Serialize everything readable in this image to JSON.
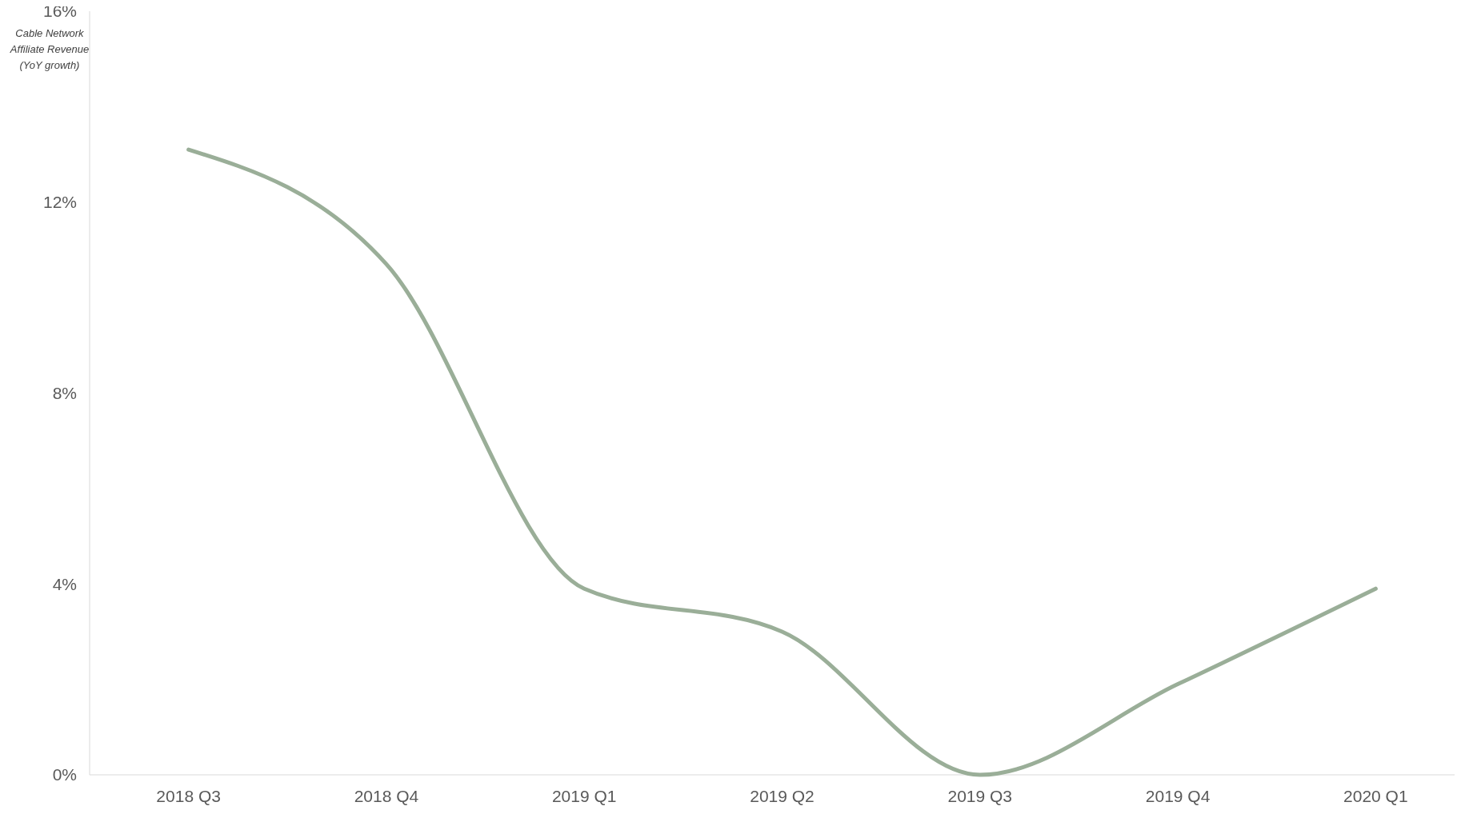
{
  "chart_data": {
    "type": "line",
    "ylabel": "Cable Network Affiliate Revenue (YoY growth)",
    "categories": [
      "2018 Q3",
      "2018 Q4",
      "2019 Q1",
      "2019 Q2",
      "2019 Q3",
      "2019 Q4",
      "2020 Q1"
    ],
    "series": [
      {
        "color": "#9aae98",
        "values": [
          13.1,
          10.7,
          3.9,
          3.0,
          0,
          1.9,
          3.9
        ]
      }
    ],
    "ylim": [
      0,
      16
    ],
    "yticks": [
      {
        "value": 0,
        "label": "0%"
      },
      {
        "value": 4,
        "label": "4%"
      },
      {
        "value": 8,
        "label": "8%"
      },
      {
        "value": 12,
        "label": "12%"
      },
      {
        "value": 16,
        "label": "16%"
      }
    ],
    "grid": false,
    "marker": "none",
    "line_style": "solid"
  }
}
